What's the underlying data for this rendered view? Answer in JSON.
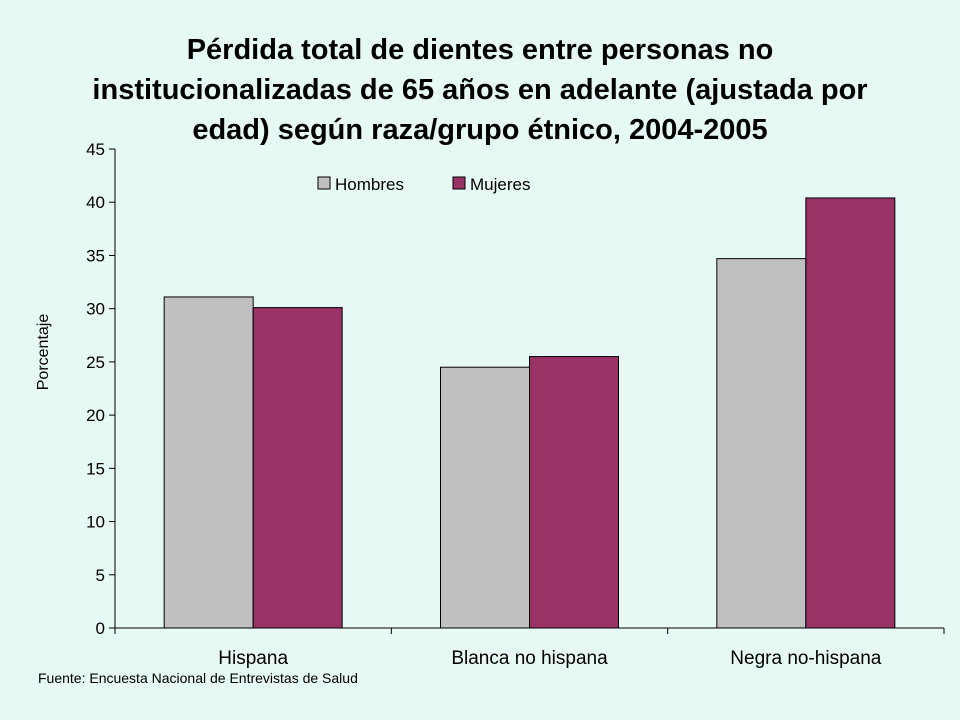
{
  "chart_data": {
    "type": "bar",
    "title_lines": [
      "Pérdida total de dientes entre personas no",
      "institucionalizadas de 65 años en adelante (ajustada por",
      "edad) según raza/grupo étnico, 2004-2005"
    ],
    "ylabel": "Porcentaje",
    "xlabel": "",
    "categories": [
      "Hispana",
      "Blanca no hispana",
      "Negra no-hispana"
    ],
    "series": [
      {
        "name": "Hombres",
        "values": [
          31.1,
          24.5,
          34.7
        ],
        "color": "#c0c0c0"
      },
      {
        "name": "Mujeres",
        "values": [
          30.1,
          25.5,
          40.4
        ],
        "color": "#993366"
      }
    ],
    "ylim": [
      0,
      45
    ],
    "yticks": [
      "0",
      "5",
      "10",
      "15",
      "20",
      "25",
      "30",
      "35",
      "40",
      "45"
    ],
    "grid": false,
    "legend_position": "top-center"
  },
  "source": "Fuente: Encuesta Nacional de Entrevistas de Salud"
}
